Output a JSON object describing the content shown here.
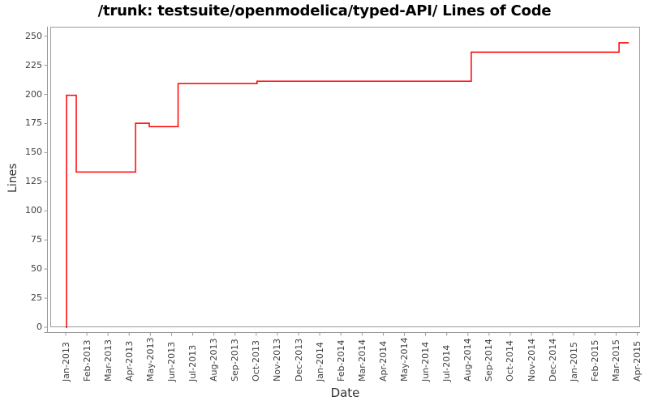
{
  "title": "/trunk: testsuite/openmodelica/typed-API/ Lines of Code",
  "axes": {
    "x_label": "Date",
    "y_label": "Lines",
    "x_tick_labels": [
      "Jan-2013",
      "Feb-2013",
      "Mar-2013",
      "Apr-2013",
      "May-2013",
      "Jun-2013",
      "Jul-2013",
      "Aug-2013",
      "Sep-2013",
      "Oct-2013",
      "Nov-2013",
      "Dec-2013",
      "Jan-2014",
      "Feb-2014",
      "Mar-2014",
      "Apr-2014",
      "May-2014",
      "Jun-2014",
      "Jul-2014",
      "Aug-2014",
      "Sep-2014",
      "Oct-2014",
      "Nov-2014",
      "Dec-2014",
      "Jan-2015",
      "Feb-2015",
      "Mar-2015",
      "Apr-2015"
    ],
    "y_tick_values": [
      0,
      25,
      50,
      75,
      100,
      125,
      150,
      175,
      200,
      225,
      250
    ]
  },
  "colors": {
    "line": "#ff0000",
    "frame": "#999999",
    "tick": "#999999",
    "tick_label": "#3f3f3f",
    "axis_label": "#333333",
    "title": "#000000",
    "background": "#ffffff"
  },
  "chart_data": {
    "type": "line",
    "line_style": "step",
    "title": "/trunk: testsuite/openmodelica/typed-API/ Lines of Code",
    "xlabel": "Date",
    "ylabel": "Lines",
    "x_axis_unit": "months, 0 = Jan-2013 tick, 27 = Apr-2015 tick",
    "xlim_months": [
      -0.73,
      27.15
    ],
    "ylim": [
      0,
      258
    ],
    "grid": false,
    "legend": false,
    "series_name": "Lines of Code",
    "points": [
      [
        0.0,
        0
      ],
      [
        0.0,
        200
      ],
      [
        0.46,
        200
      ],
      [
        0.46,
        134
      ],
      [
        3.26,
        134
      ],
      [
        3.26,
        176
      ],
      [
        3.91,
        176
      ],
      [
        3.91,
        173
      ],
      [
        5.27,
        173
      ],
      [
        5.27,
        210
      ],
      [
        9.0,
        210
      ],
      [
        9.0,
        212
      ],
      [
        19.12,
        212
      ],
      [
        19.12,
        237
      ],
      [
        26.1,
        237
      ],
      [
        26.1,
        245
      ],
      [
        26.56,
        245
      ]
    ],
    "steps_readable": [
      {
        "date": "Jan-2013",
        "lines": 200,
        "note": "initial spike from 0"
      },
      {
        "date": "mid Jan-2013",
        "lines": 134
      },
      {
        "date": "early Apr-2013",
        "lines": 176
      },
      {
        "date": "late Apr-2013",
        "lines": 173
      },
      {
        "date": "early Jun-2013",
        "lines": 210
      },
      {
        "date": "Oct-2013",
        "lines": 212
      },
      {
        "date": "early Aug-2014",
        "lines": 237
      },
      {
        "date": "early Mar-2015",
        "lines": 245
      }
    ]
  }
}
